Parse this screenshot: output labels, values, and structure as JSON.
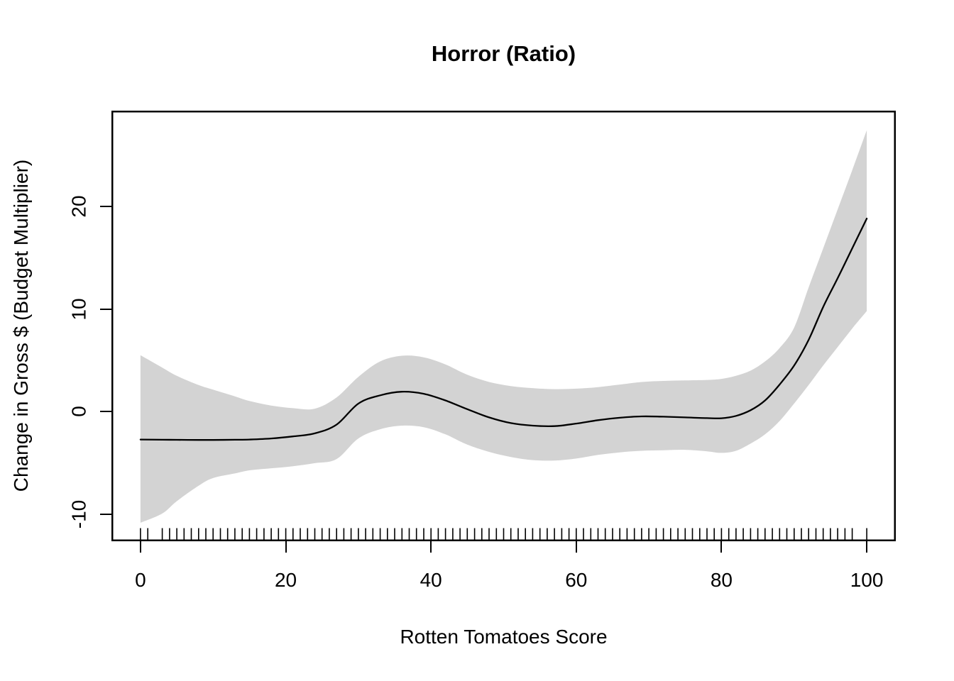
{
  "chart_data": {
    "type": "line",
    "title": "Horror (Ratio)",
    "xlabel": "Rotten Tomatoes Score",
    "ylabel": "Change in Gross $ (Budget Multiplier)",
    "x_ticks": [
      0,
      20,
      40,
      60,
      80,
      100
    ],
    "y_ticks": [
      -10,
      0,
      10,
      20
    ],
    "xlim": [
      -4,
      104
    ],
    "ylim": [
      -12.6,
      29.3
    ],
    "grid": false,
    "legend": "none",
    "band_color": "#d3d3d3",
    "line_color": "#000000",
    "axis_color": "#000000",
    "x": [
      0,
      3,
      5,
      8,
      10,
      13,
      15,
      18,
      21,
      24,
      27,
      30,
      33,
      36,
      39,
      42,
      45,
      48,
      51,
      54,
      57,
      60,
      63,
      66,
      69,
      72,
      75,
      78,
      80,
      82,
      84,
      86,
      88,
      90,
      92,
      94,
      96,
      98,
      100
    ],
    "series": [
      {
        "name": "smooth_fit",
        "values": [
          -2.7,
          -2.72,
          -2.73,
          -2.74,
          -2.74,
          -2.72,
          -2.7,
          -2.6,
          -2.4,
          -2.1,
          -1.25,
          0.8,
          1.6,
          1.95,
          1.75,
          1.1,
          0.25,
          -0.55,
          -1.1,
          -1.35,
          -1.4,
          -1.15,
          -0.82,
          -0.58,
          -0.45,
          -0.48,
          -0.55,
          -0.62,
          -0.63,
          -0.4,
          0.15,
          1.1,
          2.65,
          4.5,
          7.0,
          10.2,
          13.0,
          15.9,
          18.8
        ]
      },
      {
        "name": "ci_upper",
        "values": [
          5.5,
          4.3,
          3.5,
          2.6,
          2.15,
          1.5,
          1.05,
          0.6,
          0.35,
          0.3,
          1.4,
          3.4,
          4.9,
          5.45,
          5.3,
          4.6,
          3.6,
          2.9,
          2.5,
          2.3,
          2.2,
          2.25,
          2.4,
          2.65,
          2.9,
          3.0,
          3.05,
          3.1,
          3.2,
          3.5,
          4.0,
          4.9,
          6.2,
          8.2,
          12.1,
          15.9,
          19.7,
          23.5,
          27.4
        ]
      },
      {
        "name": "ci_lower",
        "values": [
          -10.8,
          -9.9,
          -8.7,
          -7.2,
          -6.45,
          -6.0,
          -5.7,
          -5.5,
          -5.3,
          -5.0,
          -4.6,
          -2.6,
          -1.7,
          -1.35,
          -1.5,
          -2.2,
          -3.2,
          -3.9,
          -4.4,
          -4.7,
          -4.75,
          -4.55,
          -4.2,
          -3.95,
          -3.8,
          -3.75,
          -3.7,
          -3.85,
          -4.0,
          -3.8,
          -3.1,
          -2.2,
          -0.9,
          0.8,
          2.6,
          4.5,
          6.3,
          8.1,
          9.8
        ]
      }
    ],
    "rug_x": [
      0,
      1,
      3,
      4,
      5,
      6,
      7,
      8,
      9,
      10,
      11,
      12,
      13,
      14,
      15,
      16,
      17,
      18,
      19,
      20,
      21,
      22,
      23,
      24,
      25,
      26,
      27,
      28,
      29,
      30,
      31,
      32,
      33,
      34,
      35,
      36,
      37,
      38,
      39,
      40,
      41,
      42,
      43,
      44,
      45,
      46,
      47,
      48,
      49,
      50,
      51,
      52,
      53,
      54,
      55,
      56,
      57,
      58,
      59,
      60,
      61,
      62,
      63,
      64,
      65,
      66,
      67,
      68,
      69,
      70,
      71,
      72,
      73,
      74,
      75,
      76,
      77,
      78,
      79,
      80,
      81,
      82,
      83,
      84,
      85,
      86,
      87,
      88,
      89,
      90,
      91,
      92,
      93,
      94,
      95,
      96,
      97,
      98,
      100
    ]
  }
}
